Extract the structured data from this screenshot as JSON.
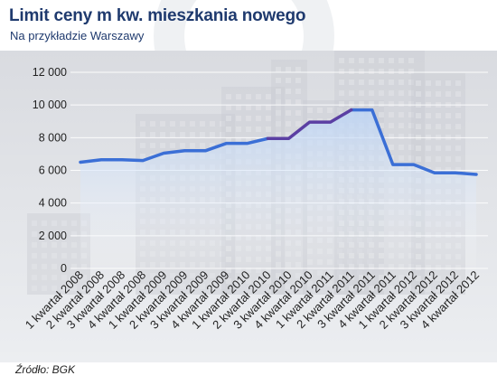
{
  "title": "Limit ceny m kw. mieszkania nowego",
  "subtitle": "Na przykładzie Warszawy",
  "source": "Źródło: BGK",
  "colors": {
    "line_main": "#3b6fd6",
    "line_highlight": "#5b3fa3",
    "area_top": "#bcd4f5",
    "title": "#1f3a6e"
  },
  "chart_data": {
    "type": "line",
    "title": "Limit ceny m kw. mieszkania nowego",
    "subtitle": "Na przykładzie Warszawy",
    "xlabel": "",
    "ylabel": "",
    "ylim": [
      0,
      12000
    ],
    "yticks": [
      0,
      2000,
      4000,
      6000,
      8000,
      10000,
      12000
    ],
    "ytick_labels": [
      "0",
      "2 000",
      "4 000",
      "6 000",
      "8 000",
      "10 000",
      "12 000"
    ],
    "grid": true,
    "legend": "none",
    "highlight_range": [
      9,
      13
    ],
    "categories": [
      "1 kwartał 2008",
      "2 kwartał 2008",
      "3 kwartał 2008",
      "4 kwartał 2008",
      "1 kwartał 2009",
      "2 kwartał 2009",
      "3 kwartał 2009",
      "4 kwartał 2009",
      "1 kwartał 2010",
      "2 kwartał 2010",
      "3 kwartał 2010",
      "4 kwartał 2010",
      "1 kwartał 2011",
      "2 kwartał 2011",
      "3 kwartał 2011",
      "4 kwartał 2011",
      "1 kwartał 2012",
      "2 kwartał 2012",
      "3 kwartał 2012",
      "4 kwartał 2012"
    ],
    "series": [
      {
        "values": [
          6500,
          6650,
          6650,
          6600,
          7050,
          7200,
          7200,
          7650,
          7650,
          7950,
          7950,
          8950,
          8950,
          9700,
          9700,
          6350,
          6350,
          5850,
          5850,
          5750
        ]
      }
    ]
  }
}
